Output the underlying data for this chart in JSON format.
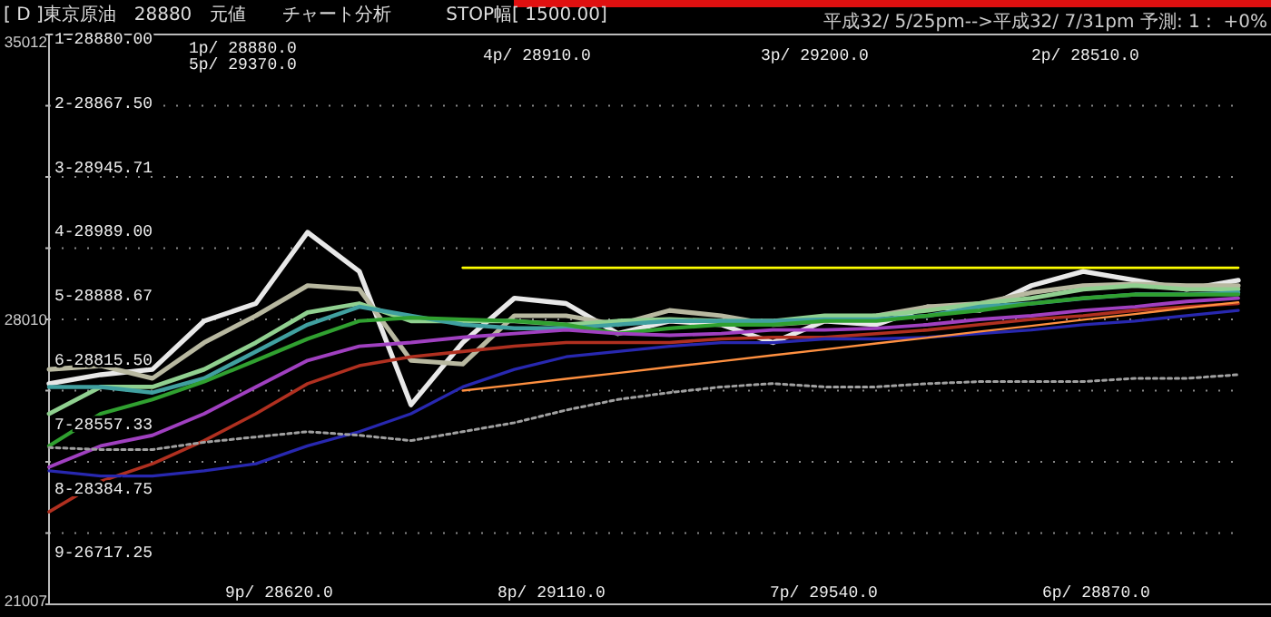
{
  "chart_data": {
    "type": "line",
    "title": "[ D ]東京原油　28880　元値　　チャート分析　　　STOP幅[ 1500.00]",
    "subtitle": "平成32/ 5/25pm-->平成32/ 7/31pm 予測: 1 :  +0%",
    "annotations": [
      "1-28880.00",
      "2-28867.50",
      "3-28945.71",
      "4-28989.00",
      "5-28888.67",
      "6-28815.50",
      "7-28557.33",
      "8-28384.75",
      "9-26717.25",
      "1p/ 28880.0",
      "5p/ 29370.0",
      "4p/ 28910.0",
      "3p/ 29200.0",
      "2p/ 28510.0",
      "9p/ 28620.0",
      "8p/ 29110.0",
      "7p/ 29540.0",
      "6p/ 28870.0"
    ],
    "categories": [
      null,
      null,
      null,
      null,
      null,
      null,
      null,
      null,
      null,
      null,
      null,
      null,
      null,
      null,
      null,
      null,
      null,
      null,
      null,
      null,
      null,
      null,
      null,
      null
    ],
    "ylim": [
      21007,
      35012
    ],
    "yticks": [
      21007,
      {
        "value": 22758,
        "label": null
      },
      {
        "value": 24508,
        "label": null
      },
      {
        "value": 26259,
        "label": null
      },
      28010,
      {
        "value": 29760,
        "label": null
      },
      {
        "value": 31511,
        "label": null
      },
      {
        "value": 33261,
        "label": null
      },
      35012
    ],
    "grid": "y",
    "marker": "none",
    "series": [
      {
        "color": "#e8e8e8",
        "values": [
          26430,
          26650,
          26780,
          27970,
          28400,
          30150,
          29190,
          25910,
          27440,
          28530,
          28400,
          27660,
          27970,
          27880,
          27440,
          27970,
          27880,
          28320,
          28230,
          28840,
          29190,
          28970,
          28750,
          28970
        ]
      },
      {
        "color": "#b8b8a0",
        "values": [
          26780,
          26870,
          26560,
          27440,
          28100,
          28840,
          28750,
          27000,
          26910,
          28100,
          28100,
          27880,
          28230,
          28100,
          27880,
          27970,
          28100,
          28320,
          28400,
          28670,
          28840,
          28880,
          28840,
          28840
        ]
      },
      {
        "color": "#90d090",
        "values": [
          25690,
          26350,
          26350,
          26780,
          27440,
          28180,
          28400,
          27970,
          27970,
          27970,
          27880,
          27970,
          28010,
          27970,
          27970,
          28100,
          28100,
          28230,
          28400,
          28530,
          28750,
          28840,
          28750,
          28750
        ]
      },
      {
        "color": "#40a0a0",
        "values": [
          26350,
          26350,
          26210,
          26560,
          27220,
          27880,
          28320,
          28100,
          27880,
          27790,
          27790,
          27880,
          27970,
          27970,
          27970,
          28010,
          28010,
          28100,
          28320,
          28400,
          28530,
          28620,
          28620,
          28670
        ]
      },
      {
        "color": "#30a030",
        "values": [
          24900,
          25690,
          26040,
          26480,
          27000,
          27530,
          27970,
          28050,
          28010,
          27970,
          27880,
          27660,
          27790,
          27880,
          27880,
          27970,
          27970,
          28100,
          28230,
          28400,
          28530,
          28620,
          28620,
          28620
        ]
      },
      {
        "color": "#a040c0",
        "values": [
          24380,
          24900,
          25160,
          25690,
          26350,
          27000,
          27350,
          27440,
          27570,
          27660,
          27750,
          27660,
          27620,
          27660,
          27750,
          27750,
          27790,
          27880,
          28010,
          28100,
          28230,
          28320,
          28450,
          28530
        ]
      },
      {
        "color": "#b03020",
        "values": [
          23280,
          24030,
          24460,
          25030,
          25690,
          26430,
          26870,
          27090,
          27220,
          27350,
          27440,
          27440,
          27440,
          27530,
          27570,
          27570,
          27660,
          27750,
          27880,
          28010,
          28100,
          28230,
          28320,
          28400
        ]
      },
      {
        "color": "#2828b0",
        "values": [
          24290,
          24160,
          24160,
          24290,
          24460,
          24900,
          25250,
          25690,
          26350,
          26780,
          27090,
          27220,
          27350,
          27440,
          27440,
          27530,
          27530,
          27570,
          27660,
          27750,
          27880,
          27970,
          28100,
          28230
        ]
      },
      {
        "color": "#a0a0a0",
        "line_style": "dotted",
        "values": [
          24860,
          24810,
          24810,
          24990,
          25120,
          25250,
          25160,
          25030,
          25250,
          25470,
          25780,
          26040,
          26210,
          26350,
          26430,
          26350,
          26350,
          26430,
          26480,
          26480,
          26480,
          26560,
          26560,
          26650
        ]
      },
      {
        "color": "#ffff00",
        "values": [
          null,
          null,
          null,
          null,
          null,
          null,
          null,
          null,
          29280,
          29280,
          29280,
          29280,
          29280,
          29280,
          29280,
          29280,
          29280,
          29280,
          29280,
          29280,
          29280,
          29280,
          29280,
          29280
        ]
      },
      {
        "color": "#ff9040",
        "values": [
          null,
          null,
          null,
          null,
          null,
          null,
          null,
          null,
          26260,
          26400,
          26550,
          26690,
          26840,
          26980,
          27130,
          27270,
          27420,
          27560,
          27710,
          27850,
          28000,
          28140,
          28290,
          28430
        ]
      }
    ]
  }
}
